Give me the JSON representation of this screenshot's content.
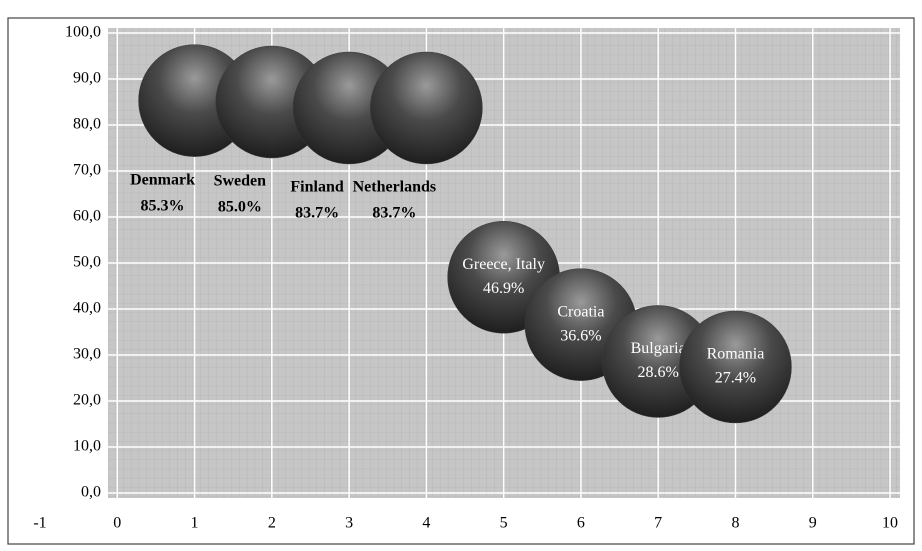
{
  "chart_data": {
    "type": "bubble",
    "categories": [
      "Denmark",
      "Sweden",
      "Finland",
      "Netherlands",
      "Greece, Italy",
      "Croatia",
      "Bulgaria",
      "Romania"
    ],
    "x": [
      1,
      2,
      3,
      4,
      5,
      6,
      7,
      8
    ],
    "values": [
      85.3,
      85.0,
      83.7,
      83.7,
      46.9,
      36.6,
      28.6,
      27.4
    ],
    "value_labels": [
      "85.3%",
      "85.0%",
      "83.7%",
      "83.7%",
      "46.9%",
      "36.6%",
      "28.6%",
      "27.4%"
    ],
    "color": "#3a3a3a",
    "xlim": [
      -1,
      10
    ],
    "xticks": [
      -1,
      0,
      1,
      2,
      3,
      4,
      5,
      6,
      7,
      8,
      9,
      10
    ],
    "ylim": [
      0,
      100
    ],
    "yticks": [
      {
        "value": 0,
        "label": "0,0"
      },
      {
        "value": 10,
        "label": "10,0"
      },
      {
        "value": 20,
        "label": "20,0"
      },
      {
        "value": 30,
        "label": "30,0"
      },
      {
        "value": 40,
        "label": "40,0"
      },
      {
        "value": 50,
        "label": "50,0"
      },
      {
        "value": 60,
        "label": "60,0"
      },
      {
        "value": 70,
        "label": "70,0"
      },
      {
        "value": 80,
        "label": "80,0"
      },
      {
        "value": 90,
        "label": "90,0"
      },
      {
        "value": 100,
        "label": "100,0"
      }
    ],
    "grid": true
  }
}
